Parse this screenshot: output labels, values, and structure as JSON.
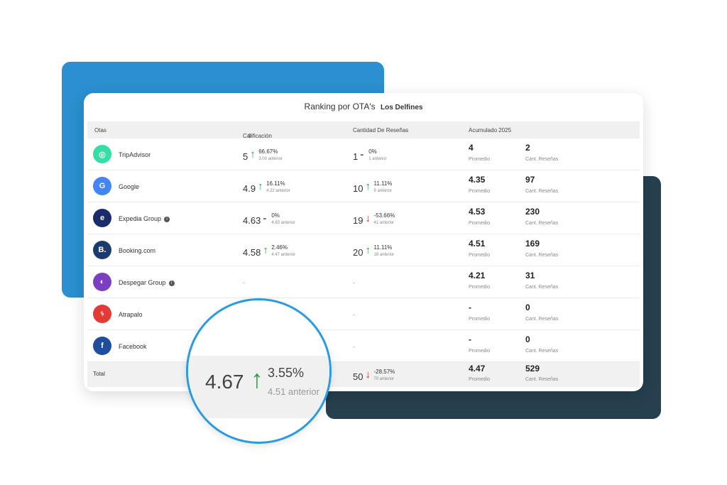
{
  "title": "Ranking por OTA's",
  "hotel": "Los Delfines",
  "columns": {
    "otas": "Otas",
    "rating": "Calificación",
    "reviews": "Cantidad De Reseñas",
    "accumulated": "Acumulado 2025"
  },
  "rows": [
    {
      "name": "TripAdvisor",
      "icon": "tripadvisor-icon",
      "color": "#34e0a1",
      "rating": "5",
      "rating_dir": "up",
      "rating_pct": "66.67%",
      "rating_prev": "3.00 anterior",
      "reviews": "1",
      "reviews_dir": "flat",
      "reviews_pct": "0%",
      "reviews_prev": "1 anterior",
      "promedio": "4",
      "promedio_label": "Promedio",
      "cant": "2",
      "cant_label": "Cant. Reseñas"
    },
    {
      "name": "Google",
      "icon": "google-icon",
      "color": "#4285f4",
      "rating": "4.9",
      "rating_dir": "up",
      "rating_pct": "16.11%",
      "rating_prev": "4.22 anterior",
      "reviews": "10",
      "reviews_dir": "up",
      "reviews_pct": "11.11%",
      "reviews_prev": "9 anterior",
      "promedio": "4.35",
      "promedio_label": "Promedio",
      "cant": "97",
      "cant_label": "Cant. Reseñas"
    },
    {
      "name": "Expedia Group",
      "icon": "expedia-icon",
      "color": "#1b2a6b",
      "info": true,
      "rating": "4.63",
      "rating_dir": "flat",
      "rating_pct": "0%",
      "rating_prev": "4.63 anterior",
      "reviews": "19",
      "reviews_dir": "down",
      "reviews_pct": "-53.66%",
      "reviews_prev": "41 anterior",
      "promedio": "4.53",
      "promedio_label": "Promedio",
      "cant": "230",
      "cant_label": "Cant. Reseñas"
    },
    {
      "name": "Booking.com",
      "icon": "booking-icon",
      "color": "#1d3a6e",
      "rating": "4.58",
      "rating_dir": "up",
      "rating_pct": "2.46%",
      "rating_prev": "4.47 anterior",
      "reviews": "20",
      "reviews_dir": "up",
      "reviews_pct": "11.11%",
      "reviews_prev": "18 anterior",
      "promedio": "4.51",
      "promedio_label": "Promedio",
      "cant": "169",
      "cant_label": "Cant. Reseñas"
    },
    {
      "name": "Despegar Group",
      "icon": "despegar-icon",
      "color": "#7b3fbf",
      "info": true,
      "rating": "-",
      "rating_dir": "none",
      "reviews": "-",
      "reviews_dir": "none",
      "promedio": "4.21",
      "promedio_label": "Promedio",
      "cant": "31",
      "cant_label": "Cant. Reseñas"
    },
    {
      "name": "Atrapalo",
      "icon": "atrapalo-icon",
      "color": "#e53935",
      "rating": "-",
      "rating_dir": "none",
      "reviews": "-",
      "reviews_dir": "none",
      "promedio": "-",
      "promedio_label": "Promedio",
      "cant": "0",
      "cant_label": "Cant. Reseñas"
    },
    {
      "name": "Facebook",
      "icon": "facebook-icon",
      "color": "#1f4f9c",
      "rating": "-",
      "rating_dir": "none",
      "reviews": "-",
      "reviews_dir": "none",
      "promedio": "-",
      "promedio_label": "Promedio",
      "cant": "0",
      "cant_label": "Cant. Reseñas"
    }
  ],
  "total": {
    "label": "Total",
    "reviews": "50",
    "reviews_dir": "down",
    "reviews_pct": "-28.57%",
    "reviews_prev": "70 anterior",
    "promedio": "4.47",
    "promedio_label": "Promedio",
    "cant": "529",
    "cant_label": "Cant. Reseñas"
  },
  "magnifier": {
    "rating": "4.67",
    "pct": "3.55%",
    "prev": "4.51 anterior"
  },
  "colors": {
    "accent_blue": "#2b8fd0",
    "dark_panel": "#26404f",
    "up": "#24a33b",
    "down": "#d32f2f"
  }
}
